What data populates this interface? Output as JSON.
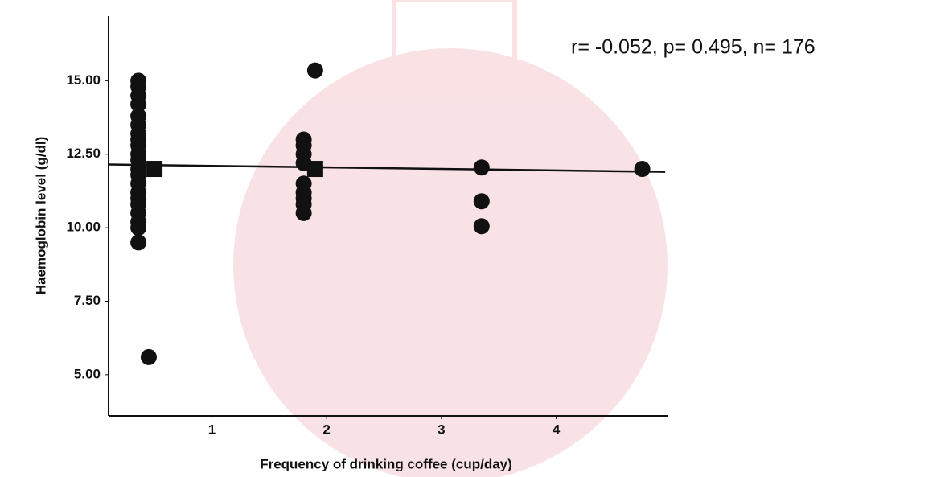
{
  "chart_data": {
    "type": "scatter",
    "annotation": "r= -0.052, p= 0.495, n= 176",
    "x_label": "Frequency of drinking coffee (cup/day)",
    "y_label": "Haemoglobin level (g/dl)",
    "xlim": [
      0.1,
      4.97
    ],
    "xticks": [
      1,
      2,
      3,
      4
    ],
    "ylim": [
      3.6,
      17.2
    ],
    "yticks": [
      {
        "value": 5,
        "label": "5.00"
      },
      {
        "value": 7.5,
        "label": "7.50"
      },
      {
        "value": 10,
        "label": "10.00"
      },
      {
        "value": 12.5,
        "label": "12.50"
      },
      {
        "value": 15,
        "label": "15.00"
      }
    ],
    "series": [
      {
        "marker": "circle",
        "color": "#111111",
        "x": [
          0.36,
          0.36,
          0.36,
          0.36,
          0.36,
          0.36,
          0.36,
          0.36,
          0.36,
          0.36,
          0.36,
          0.36,
          0.36,
          0.36,
          0.36,
          0.36,
          0.36,
          0.36,
          0.36,
          0.36,
          0.36,
          0.45,
          1.8,
          1.8,
          1.8,
          1.8,
          1.8,
          1.8,
          1.8,
          1.8,
          1.8,
          1.9,
          3.35,
          3.35,
          3.35,
          4.75
        ],
        "y": [
          15,
          14.8,
          14.5,
          14.2,
          13.8,
          13.5,
          13.2,
          13,
          12.8,
          12.5,
          12.3,
          12,
          11.8,
          11.5,
          11.2,
          11,
          10.8,
          10.5,
          10.2,
          10,
          9.5,
          5.6,
          13,
          12.8,
          12.5,
          12.2,
          11.5,
          11.2,
          11,
          10.8,
          10.5,
          15.35,
          12.05,
          10.9,
          10.05,
          12
        ]
      },
      {
        "marker": "square",
        "color": "#111111",
        "x": [
          0.5,
          1.9
        ],
        "y": [
          12,
          12
        ]
      }
    ],
    "fit": {
      "x": [
        0.1,
        4.95
      ],
      "y": [
        12.15,
        11.9
      ],
      "color": "#111111"
    }
  }
}
